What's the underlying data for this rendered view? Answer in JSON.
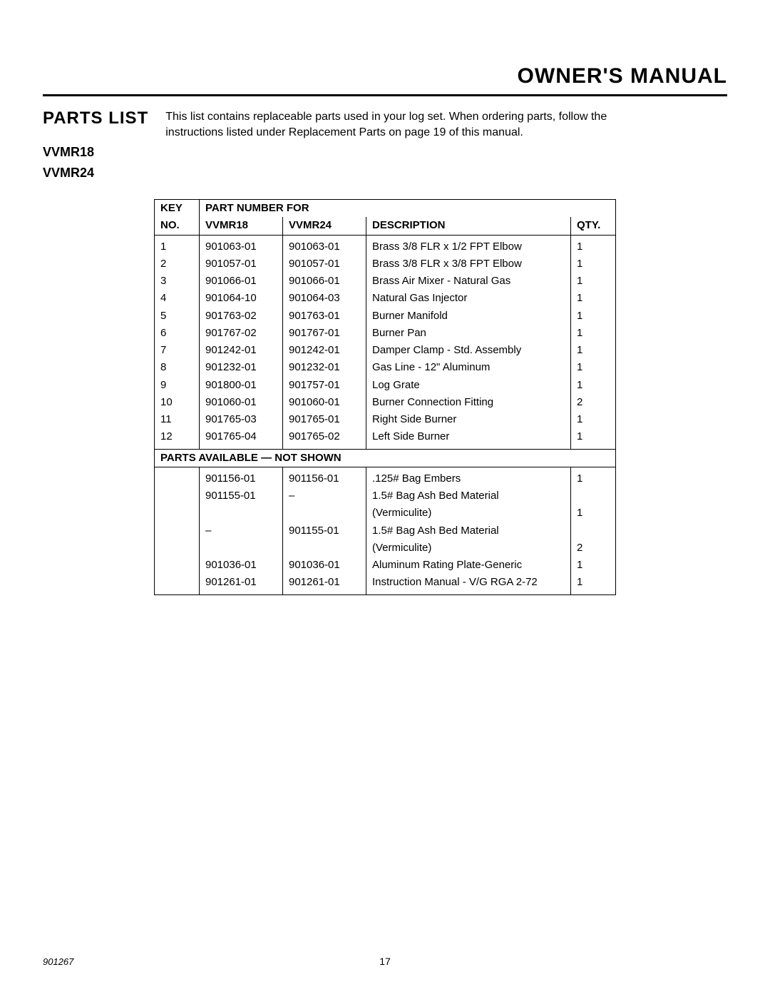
{
  "header": {
    "title": "OWNER'S MANUAL"
  },
  "section": {
    "title": "PARTS LIST",
    "intro_line1": "This list contains replaceable parts used in your log set. When ordering parts, follow the",
    "intro_line2_a": "instructions listed under ",
    "intro_line2_b": "Replacement Parts",
    "intro_line2_c": " on page 19 of this manual.",
    "model1": "VVMR18",
    "model2": "VVMR24"
  },
  "table": {
    "header": {
      "key_top": "KEY",
      "key_bottom": "NO.",
      "partnum_for": "PART NUMBER FOR",
      "vvmr18": "VVMR18",
      "vvmr24": "VVMR24",
      "description": "DESCRIPTION",
      "qty": "QTY."
    },
    "rows": [
      {
        "key": "1",
        "p18": "901063-01",
        "p24": "901063-01",
        "desc": "Brass 3/8 FLR x 1/2 FPT Elbow",
        "qty": "1"
      },
      {
        "key": "2",
        "p18": "901057-01",
        "p24": "901057-01",
        "desc": "Brass 3/8 FLR x 3/8 FPT Elbow",
        "qty": "1"
      },
      {
        "key": "3",
        "p18": "901066-01",
        "p24": "901066-01",
        "desc": "Brass Air Mixer - Natural Gas",
        "qty": "1"
      },
      {
        "key": "4",
        "p18": "901064-10",
        "p24": "901064-03",
        "desc": "Natural Gas Injector",
        "qty": "1"
      },
      {
        "key": "5",
        "p18": "901763-02",
        "p24": "901763-01",
        "desc": "Burner Manifold",
        "qty": "1"
      },
      {
        "key": "6",
        "p18": "901767-02",
        "p24": "901767-01",
        "desc": "Burner Pan",
        "qty": "1"
      },
      {
        "key": "7",
        "p18": "901242-01",
        "p24": "901242-01",
        "desc": "Damper Clamp - Std. Assembly",
        "qty": "1"
      },
      {
        "key": "8",
        "p18": "901232-01",
        "p24": "901232-01",
        "desc": "Gas Line - 12\" Aluminum",
        "qty": "1"
      },
      {
        "key": "9",
        "p18": "901800-01",
        "p24": "901757-01",
        "desc": "Log Grate",
        "qty": "1"
      },
      {
        "key": "10",
        "p18": "901060-01",
        "p24": "901060-01",
        "desc": "Burner Connection Fitting",
        "qty": "2"
      },
      {
        "key": "11",
        "p18": "901765-03",
        "p24": "901765-01",
        "desc": "Right Side Burner",
        "qty": "1"
      },
      {
        "key": "12",
        "p18": "901765-04",
        "p24": "901765-02",
        "desc": "Left Side Burner",
        "qty": "1"
      }
    ],
    "section2_title": "PARTS AVAILABLE — NOT SHOWN",
    "rows2": [
      {
        "key": "",
        "p18": "901156-01",
        "p24": "901156-01",
        "desc": ".125# Bag Embers",
        "qty": "1"
      },
      {
        "key": "",
        "p18": "901155-01",
        "p24": "–",
        "desc": "1.5# Bag Ash Bed Material",
        "qty": ""
      },
      {
        "key": "",
        "p18": "",
        "p24": "",
        "desc": "(Vermiculite)",
        "qty": "1"
      },
      {
        "key": "",
        "p18": "–",
        "p24": "901155-01",
        "desc": "1.5# Bag Ash Bed Material",
        "qty": ""
      },
      {
        "key": "",
        "p18": "",
        "p24": "",
        "desc": "(Vermiculite)",
        "qty": "2"
      },
      {
        "key": "",
        "p18": "901036-01",
        "p24": "901036-01",
        "desc": "Aluminum Rating Plate-Generic",
        "qty": "1"
      },
      {
        "key": "",
        "p18": "901261-01",
        "p24": "901261-01",
        "desc": "Instruction Manual - V/G RGA 2-72",
        "qty": "1"
      }
    ]
  },
  "footer": {
    "docnum": "901267",
    "pagenum": "17"
  }
}
